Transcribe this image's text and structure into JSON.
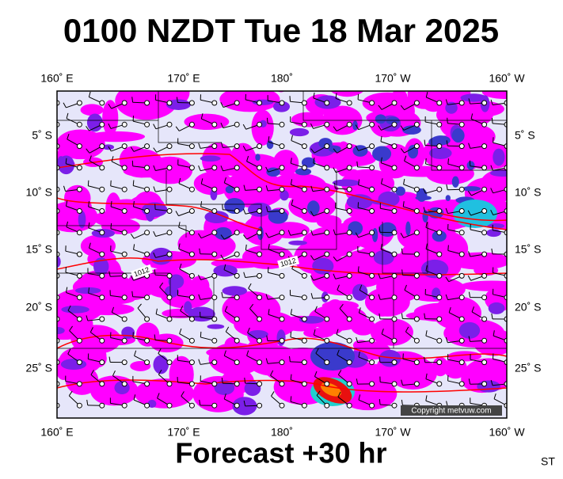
{
  "title": "0100 NZDT Tue 18 Mar 2025",
  "top_labels": [
    "160˚ E",
    "170˚ E",
    "180˚",
    "170˚ W",
    "160˚ W"
  ],
  "bottom_labels": [
    "160˚ E",
    "170˚ E",
    "180˚",
    "170˚ W",
    "160˚ W"
  ],
  "left_labels": [
    "5˚ S",
    "10˚ S",
    "15˚ S",
    "20˚ S",
    "25˚ S"
  ],
  "right_labels": [
    "5˚ S",
    "10˚ S",
    "15˚ S",
    "20˚ S",
    "25˚ S"
  ],
  "isobar_labels": [
    "1012",
    "1012"
  ],
  "copyright": "Copyright metvuw.com",
  "footer": "Forecast +30 hr",
  "corner": "ST"
}
